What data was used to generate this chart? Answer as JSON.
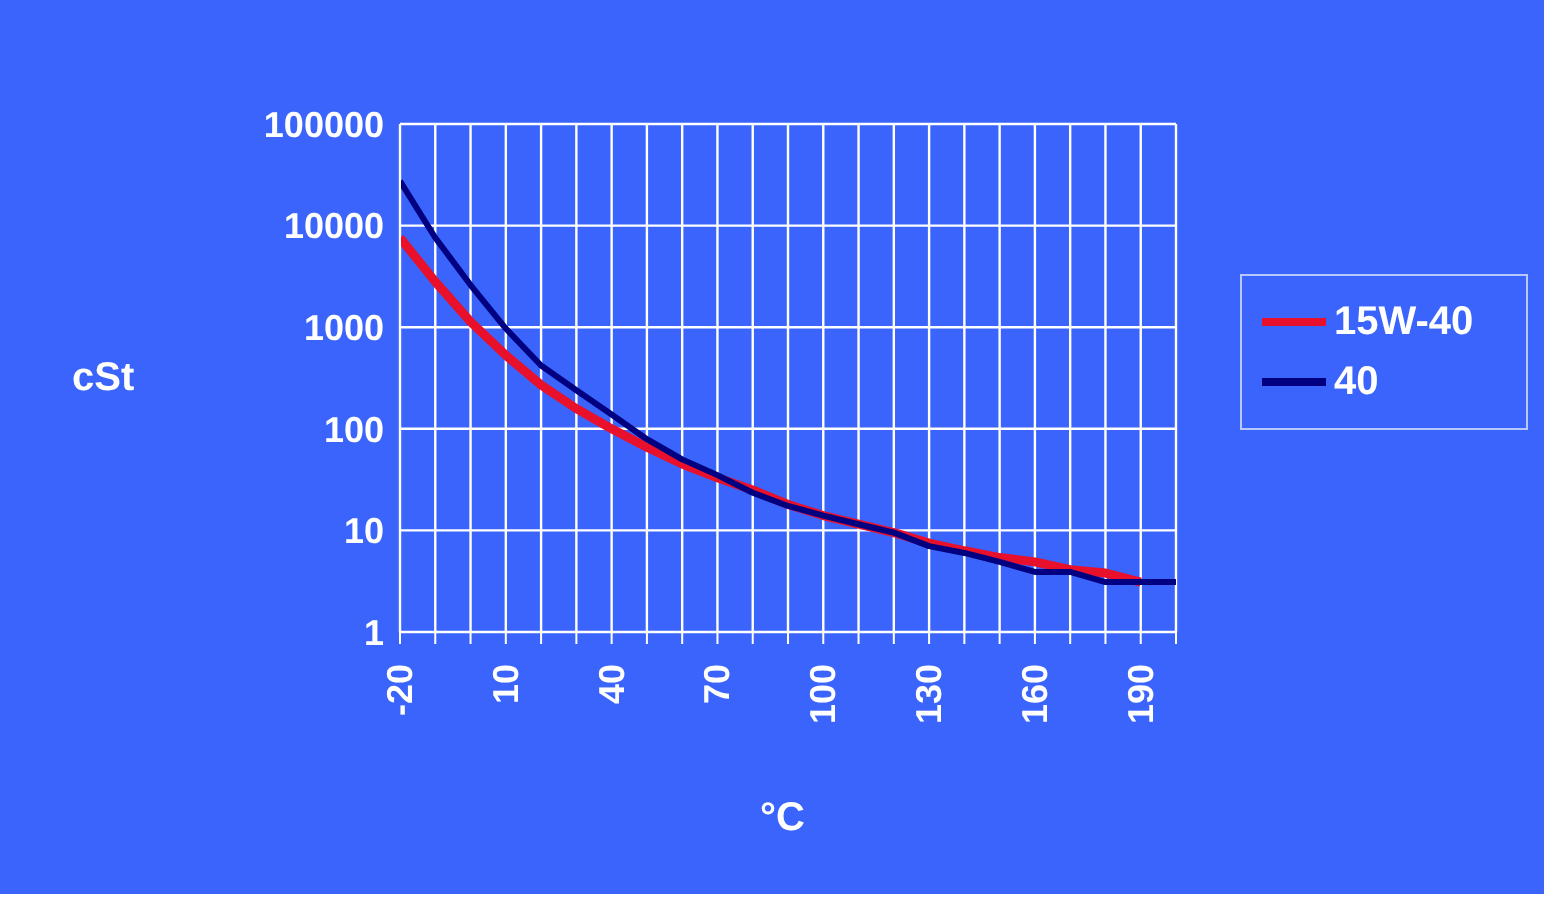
{
  "chart_data": {
    "type": "line",
    "xlabel": "°C",
    "ylabel": "cSt",
    "x": [
      -20,
      -10,
      0,
      10,
      20,
      30,
      40,
      50,
      60,
      70,
      80,
      90,
      100,
      110,
      120,
      130,
      140,
      150,
      160,
      170,
      180,
      190,
      200
    ],
    "series": [
      {
        "name": "15W-40",
        "color": "#e8102a",
        "values": [
          7600,
          2800,
          1130,
          530,
          270,
          158,
          100,
          66,
          45,
          33,
          25,
          18,
          14,
          11.5,
          9.5,
          7.5,
          6.3,
          5.4,
          4.9,
          4.1,
          3.8,
          3.1,
          null
        ]
      },
      {
        "name": "40",
        "color": "#000080",
        "values": [
          27500,
          7600,
          2600,
          970,
          420,
          240,
          138,
          79,
          50,
          35,
          23.5,
          17.4,
          14,
          11.5,
          9.5,
          7,
          6,
          4.9,
          3.9,
          3.9,
          3.1,
          3.1,
          3.1
        ]
      }
    ],
    "log": "y",
    "xlim": [
      -20,
      200
    ],
    "ylim": [
      1,
      100000
    ],
    "xticks": [
      -20,
      {
        "value": -10,
        "label": null
      },
      {
        "value": 0,
        "label": null
      },
      10,
      {
        "value": 20,
        "label": null
      },
      {
        "value": 30,
        "label": null
      },
      40,
      {
        "value": 50,
        "label": null
      },
      {
        "value": 60,
        "label": null
      },
      70,
      {
        "value": 80,
        "label": null
      },
      {
        "value": 90,
        "label": null
      },
      100,
      {
        "value": 110,
        "label": null
      },
      {
        "value": 120,
        "label": null
      },
      130,
      {
        "value": 140,
        "label": null
      },
      {
        "value": 150,
        "label": null
      },
      160,
      {
        "value": 170,
        "label": null
      },
      {
        "value": 180,
        "label": null
      },
      190,
      {
        "value": 200,
        "label": null
      }
    ],
    "yticks": [
      1,
      10,
      100,
      1000,
      10000,
      100000
    ],
    "grid": true,
    "legend": "right",
    "marker": "none",
    "line_style": "solid"
  }
}
